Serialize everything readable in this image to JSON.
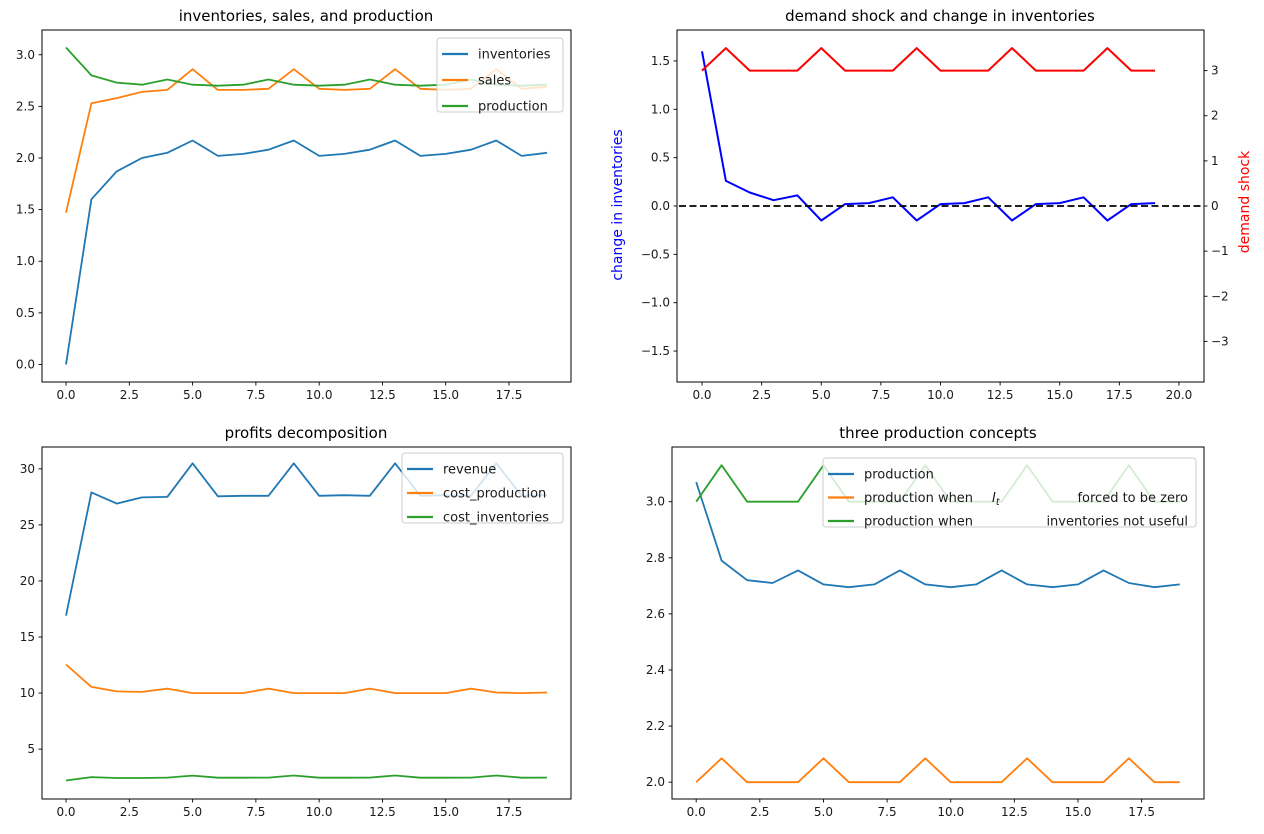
{
  "chart_data": [
    {
      "type": "line",
      "title": "inventories, sales, and production",
      "x": [
        0,
        1,
        2,
        3,
        4,
        5,
        6,
        7,
        8,
        9,
        10,
        11,
        12,
        13,
        14,
        15,
        16,
        17,
        18,
        19
      ],
      "series": [
        {
          "name": "inventories",
          "color": "#1f77b4",
          "values": [
            0.0,
            1.6,
            1.87,
            2.0,
            2.05,
            2.17,
            2.02,
            2.04,
            2.08,
            2.17,
            2.02,
            2.04,
            2.08,
            2.17,
            2.02,
            2.04,
            2.08,
            2.17,
            2.02,
            2.05
          ]
        },
        {
          "name": "sales",
          "color": "#ff7f0e",
          "values": [
            1.47,
            2.53,
            2.58,
            2.64,
            2.66,
            2.86,
            2.66,
            2.66,
            2.67,
            2.86,
            2.67,
            2.66,
            2.67,
            2.86,
            2.67,
            2.66,
            2.67,
            2.86,
            2.67,
            2.69
          ]
        },
        {
          "name": "production",
          "color": "#2ca02c",
          "values": [
            3.07,
            2.8,
            2.73,
            2.71,
            2.76,
            2.71,
            2.7,
            2.71,
            2.76,
            2.71,
            2.7,
            2.71,
            2.76,
            2.71,
            2.7,
            2.71,
            2.76,
            2.71,
            2.7,
            2.71
          ]
        }
      ],
      "xlim": [
        -0.95,
        19.95
      ],
      "ylim": [
        -0.17,
        3.24
      ],
      "xticks": {
        "values": [
          0,
          2.5,
          5,
          7.5,
          10,
          12.5,
          15,
          17.5
        ],
        "labels": [
          "0.0",
          "2.5",
          "5.0",
          "7.5",
          "10.0",
          "12.5",
          "15.0",
          "17.5"
        ]
      },
      "yticks": {
        "values": [
          0,
          0.5,
          1,
          1.5,
          2,
          2.5,
          3
        ],
        "labels": [
          "0.0",
          "0.5",
          "1.0",
          "1.5",
          "2.0",
          "2.5",
          "3.0"
        ]
      },
      "legend": {
        "position": "upper right",
        "items": [
          {
            "label": "inventories"
          },
          {
            "label": "sales"
          },
          {
            "label": "production"
          }
        ]
      }
    },
    {
      "type": "line",
      "title": "demand shock and change in inventories",
      "ylabel_left": "change in inventories",
      "ylabel_left_color": "#0000ff",
      "ylabel_right": "demand shock",
      "ylabel_right_color": "#ff0000",
      "x": [
        0,
        1,
        2,
        3,
        4,
        5,
        6,
        7,
        8,
        9,
        10,
        11,
        12,
        13,
        14,
        15,
        16,
        17,
        18,
        19
      ],
      "series": [
        {
          "name": "change in inventories",
          "color": "#0000ff",
          "axis": "left",
          "width": 2,
          "values": [
            1.6,
            0.26,
            0.14,
            0.06,
            0.11,
            -0.15,
            0.02,
            0.03,
            0.09,
            -0.15,
            0.02,
            0.03,
            0.09,
            -0.15,
            0.02,
            0.03,
            0.09,
            -0.15,
            0.02,
            0.03
          ]
        },
        {
          "name": "demand shock",
          "color": "#ff0000",
          "axis": "right",
          "width": 2,
          "values": [
            3,
            3.5,
            3,
            3,
            3,
            3.5,
            3,
            3,
            3,
            3.5,
            3,
            3,
            3,
            3.5,
            3,
            3,
            3,
            3.5,
            3,
            3
          ]
        },
        {
          "name": "zero line",
          "color": "#000000",
          "axis": "left",
          "dash": true,
          "width": 1.8,
          "hline": 0
        }
      ],
      "xlim": [
        -1.05,
        21.05
      ],
      "ylim": [
        -1.82,
        1.82
      ],
      "ylim_right": [
        -3.9,
        3.9
      ],
      "xticks": {
        "values": [
          0,
          2.5,
          5,
          7.5,
          10,
          12.5,
          15,
          17.5,
          20
        ],
        "labels": [
          "0.0",
          "2.5",
          "5.0",
          "7.5",
          "10.0",
          "12.5",
          "15.0",
          "17.5",
          "20.0"
        ]
      },
      "yticks": {
        "values": [
          -1.5,
          -1,
          -0.5,
          0,
          0.5,
          1,
          1.5
        ],
        "labels": [
          "−1.5",
          "−1.0",
          "−0.5",
          "0.0",
          "0.5",
          "1.0",
          "1.5"
        ]
      },
      "yticks_right": {
        "values": [
          -3,
          -2,
          -1,
          0,
          1,
          2,
          3
        ],
        "labels": [
          "−3",
          "−2",
          "−1",
          "0",
          "1",
          "2",
          "3"
        ]
      }
    },
    {
      "type": "line",
      "title": "profits decomposition",
      "x": [
        0,
        1,
        2,
        3,
        4,
        5,
        6,
        7,
        8,
        9,
        10,
        11,
        12,
        13,
        14,
        15,
        16,
        17,
        18,
        19
      ],
      "series": [
        {
          "name": "revenue",
          "color": "#1f77b4",
          "values": [
            16.9,
            27.9,
            26.9,
            27.45,
            27.5,
            30.5,
            27.55,
            27.6,
            27.6,
            30.5,
            27.6,
            27.65,
            27.6,
            30.5,
            27.6,
            27.65,
            27.6,
            30.5,
            27.6,
            27.65
          ]
        },
        {
          "name": "cost_production",
          "color": "#ff7f0e",
          "values": [
            12.55,
            10.55,
            10.15,
            10.1,
            10.4,
            10.0,
            10.0,
            10.0,
            10.4,
            10.0,
            10.0,
            10.0,
            10.4,
            10.0,
            10.0,
            10.0,
            10.4,
            10.05,
            10.0,
            10.05
          ]
        },
        {
          "name": "cost_inventories",
          "color": "#2ca02c",
          "values": [
            2.2,
            2.5,
            2.42,
            2.42,
            2.46,
            2.64,
            2.45,
            2.45,
            2.46,
            2.65,
            2.45,
            2.45,
            2.46,
            2.65,
            2.45,
            2.45,
            2.46,
            2.65,
            2.45,
            2.46
          ]
        }
      ],
      "xlim": [
        -0.95,
        19.95
      ],
      "ylim": [
        0.55,
        31.95
      ],
      "xticks": {
        "values": [
          0,
          2.5,
          5,
          7.5,
          10,
          12.5,
          15,
          17.5
        ],
        "labels": [
          "0.0",
          "2.5",
          "5.0",
          "7.5",
          "10.0",
          "12.5",
          "15.0",
          "17.5"
        ]
      },
      "yticks": {
        "values": [
          5,
          10,
          15,
          20,
          25,
          30
        ],
        "labels": [
          "5",
          "10",
          "15",
          "20",
          "25",
          "30"
        ]
      },
      "legend": {
        "position": "upper right",
        "items": [
          {
            "label": "revenue"
          },
          {
            "label": "cost_production"
          },
          {
            "label": "cost_inventories"
          }
        ]
      }
    },
    {
      "type": "line",
      "title": "three production concepts",
      "x": [
        0,
        1,
        2,
        3,
        4,
        5,
        6,
        7,
        8,
        9,
        10,
        11,
        12,
        13,
        14,
        15,
        16,
        17,
        18,
        19
      ],
      "series": [
        {
          "name": "production",
          "color": "#1f77b4",
          "values": [
            3.07,
            2.79,
            2.72,
            2.71,
            2.755,
            2.705,
            2.695,
            2.705,
            2.755,
            2.705,
            2.695,
            2.705,
            2.755,
            2.705,
            2.695,
            2.705,
            2.755,
            2.71,
            2.695,
            2.705
          ]
        },
        {
          "name": "production when I_t forced to be zero",
          "color": "#ff7f0e",
          "values": [
            2.0,
            2.085,
            2.0,
            2.0,
            2.0,
            2.085,
            2.0,
            2.0,
            2.0,
            2.085,
            2.0,
            2.0,
            2.0,
            2.085,
            2.0,
            2.0,
            2.0,
            2.085,
            2.0,
            2.0
          ]
        },
        {
          "name": "production when inventories not useful",
          "color": "#2ca02c",
          "values": [
            3.0,
            3.13,
            3.0,
            3.0,
            3.0,
            3.13,
            3.0,
            3.0,
            3.0,
            3.13,
            3.0,
            3.0,
            3.0,
            3.13,
            3.0,
            3.0,
            3.0,
            3.13,
            3.0,
            3.0
          ]
        }
      ],
      "xlim": [
        -0.95,
        19.95
      ],
      "ylim": [
        1.94,
        3.195
      ],
      "xticks": {
        "values": [
          0,
          2.5,
          5,
          7.5,
          10,
          12.5,
          15,
          17.5
        ],
        "labels": [
          "0.0",
          "2.5",
          "5.0",
          "7.5",
          "10.0",
          "12.5",
          "15.0",
          "17.5"
        ]
      },
      "yticks": {
        "values": [
          2.0,
          2.2,
          2.4,
          2.6,
          2.8,
          3.0
        ],
        "labels": [
          "2.0",
          "2.2",
          "2.4",
          "2.6",
          "2.8",
          "3.0"
        ]
      },
      "legend": {
        "position": "upper center",
        "items": [
          {
            "label": "production"
          },
          {
            "label": "production when",
            "math_var": "I",
            "math_sub": "t",
            "label2": "forced to be zero"
          },
          {
            "label": "production when",
            "label2": "inventories not useful"
          }
        ]
      }
    }
  ]
}
